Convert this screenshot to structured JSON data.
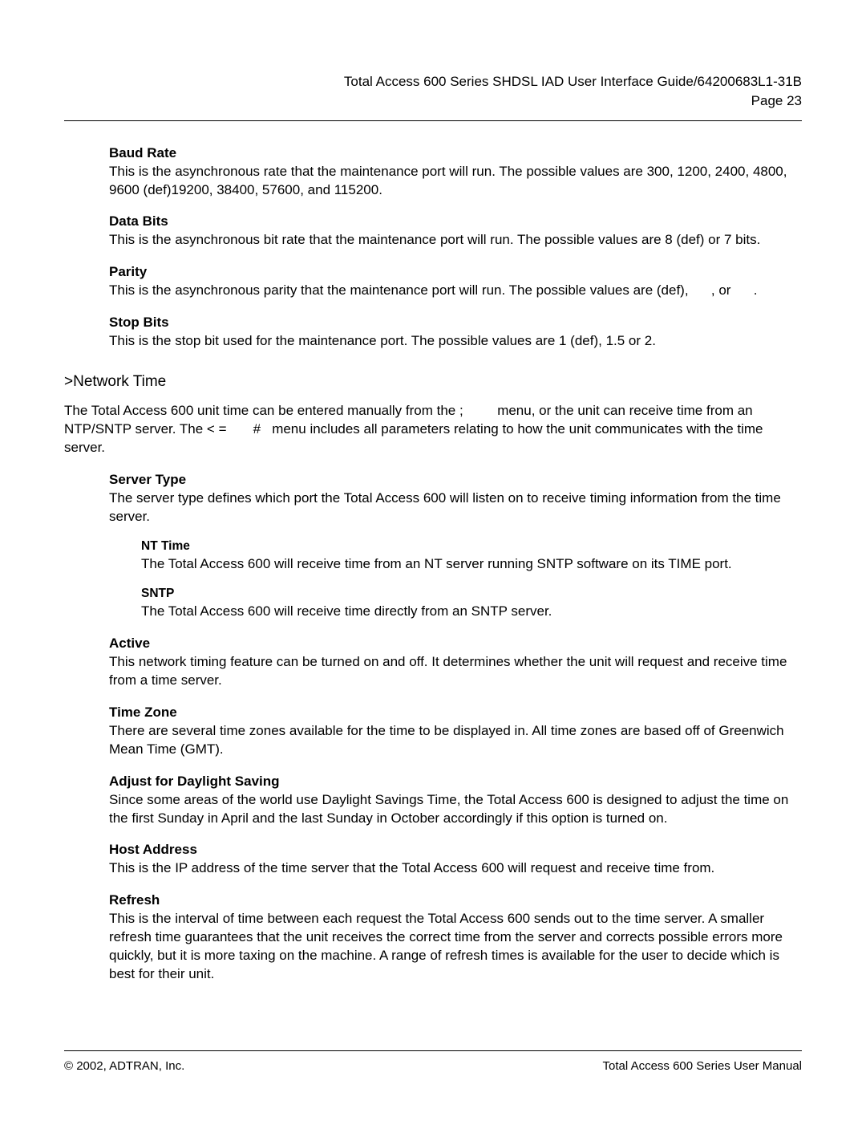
{
  "header": {
    "title": "Total Access 600 Series SHDSL IAD User Interface Guide/64200683L1-31B",
    "page": "Page 23"
  },
  "sections": {
    "baud_rate": {
      "title": "Baud Rate",
      "desc": "This is the asynchronous rate that the maintenance port will run. The possible values are 300, 1200, 2400, 4800, 9600 (def)19200, 38400, 57600, and 115200."
    },
    "data_bits": {
      "title": "Data Bits",
      "desc": "This is the asynchronous bit rate that the maintenance port will run. The possible values are 8 (def) or 7 bits."
    },
    "parity": {
      "title": "Parity",
      "desc": "This is the asynchronous parity that the maintenance port will run. The possible values are (def),      , or      ."
    },
    "stop_bits": {
      "title": "Stop Bits",
      "desc": "This is the stop bit used for the maintenance port. The possible values are 1 (def), 1.5 or 2."
    },
    "network_time": {
      "heading": ">Network Time",
      "intro": "The Total Access 600 unit time can be entered manually from the ;         menu, or the unit can receive time from an NTP/SNTP server. The < =       #   menu includes all parameters relating to how the unit communicates with the time server."
    },
    "server_type": {
      "title": "Server Type",
      "desc": "The server type defines which port the Total Access 600 will listen on to receive timing information from the time server."
    },
    "nt_time": {
      "title": "NT Time",
      "desc": "The Total Access 600 will receive time from an NT server running SNTP software on its TIME port."
    },
    "sntp": {
      "title": "SNTP",
      "desc": "The Total Access 600 will receive time directly from an SNTP server."
    },
    "active": {
      "title": "Active",
      "desc": "This network timing feature can be turned on and off. It determines whether the unit will request and receive time from a time server."
    },
    "time_zone": {
      "title": "Time Zone",
      "desc": "There are several time zones available for the time to be displayed in. All time zones are based off of Greenwich Mean Time (GMT)."
    },
    "daylight": {
      "title": "Adjust for Daylight Saving",
      "desc": "Since some areas of the world use Daylight Savings Time, the Total Access 600 is designed to adjust the time on the first Sunday in April and the last Sunday in October accordingly if this option is turned on."
    },
    "host_address": {
      "title": "Host Address",
      "desc": "This is the IP address of the time server that the Total Access 600 will request and receive time from."
    },
    "refresh": {
      "title": "Refresh",
      "desc": "This is the interval of time between each request the Total Access 600 sends out to the time server. A smaller refresh time guarantees that the unit receives the correct time from the server and corrects possible errors more quickly, but it is more taxing on the machine. A range of refresh times is available for the user to decide which is best for their unit."
    }
  },
  "footer": {
    "copyright": "© 2002, ADTRAN, Inc.",
    "manual": "Total Access 600 Series User Manual"
  }
}
